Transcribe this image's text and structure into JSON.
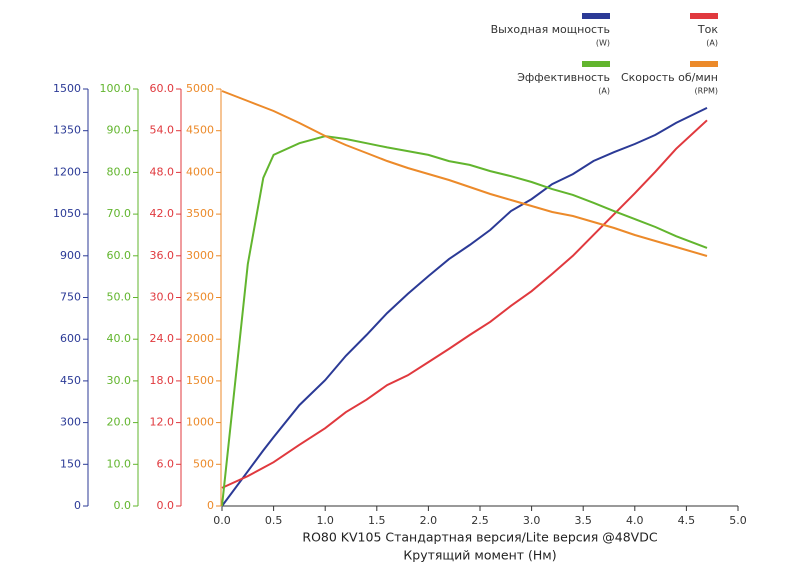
{
  "chart_data": {
    "type": "line",
    "title": "RO80 KV105 Стандартная версия/Lite версия  @48VDC",
    "xlabel": "Крутящий момент (Нм)",
    "x": [
      0,
      0.25,
      0.4,
      0.5,
      0.75,
      1.0,
      1.2,
      1.4,
      1.6,
      1.8,
      2.0,
      2.2,
      2.4,
      2.6,
      2.8,
      3.0,
      3.2,
      3.4,
      3.6,
      3.8,
      4.0,
      4.2,
      4.4,
      4.7
    ],
    "xlim": [
      0,
      5
    ],
    "xticks": [
      {
        "value": 0,
        "label": "0.0"
      },
      {
        "value": 0.5,
        "label": "0.5"
      },
      {
        "value": 1,
        "label": "1.0"
      },
      {
        "value": 1.5,
        "label": "1.5"
      },
      {
        "value": 2,
        "label": "2.0"
      },
      {
        "value": 2.5,
        "label": "2.5"
      },
      {
        "value": 3,
        "label": "3.0"
      },
      {
        "value": 3.5,
        "label": "3.5"
      },
      {
        "value": 4,
        "label": "4.0"
      },
      {
        "value": 4.5,
        "label": "4.5"
      },
      {
        "value": 5,
        "label": "5.0"
      }
    ],
    "series": [
      {
        "name": "Выходная мощность",
        "unit": "(W)",
        "color": "#2b3a96",
        "values": [
          0,
          125,
          200,
          248,
          363,
          453,
          540,
          615,
          694,
          763,
          827,
          888,
          939,
          993,
          1061,
          1104,
          1158,
          1194,
          1241,
          1273,
          1302,
          1335,
          1378,
          1432
        ],
        "ylim": [
          0,
          1500
        ],
        "yticks": [
          0,
          150,
          300,
          450,
          600,
          750,
          900,
          1050,
          1200,
          1350,
          1500
        ]
      },
      {
        "name": "Ток",
        "unit": "(A)",
        "color": "#e0393e",
        "values": [
          2.6,
          4.3,
          5.5,
          6.3,
          8.8,
          11.2,
          13.5,
          15.3,
          17.4,
          18.8,
          20.7,
          22.6,
          24.6,
          26.5,
          28.8,
          30.9,
          33.4,
          36.0,
          39.0,
          42.0,
          45.0,
          48.1,
          51.4,
          55.5
        ],
        "ylim": [
          0,
          60
        ],
        "yticks": [
          {
            "value": 0,
            "label": "0.0"
          },
          {
            "value": 6,
            "label": "6.0"
          },
          {
            "value": 12,
            "label": "12.0"
          },
          {
            "value": 18,
            "label": "18.0"
          },
          {
            "value": 24,
            "label": "24.0"
          },
          {
            "value": 30,
            "label": "30.0"
          },
          {
            "value": 36,
            "label": "36.0"
          },
          {
            "value": 42,
            "label": "42.0"
          },
          {
            "value": 48,
            "label": "48.0"
          },
          {
            "value": 54,
            "label": "54.0"
          },
          {
            "value": 60,
            "label": "60.0"
          }
        ]
      },
      {
        "name": "Эффективность",
        "unit": "(A)",
        "color": "#62b52e",
        "values": [
          0,
          58,
          78.7,
          84.2,
          87,
          88.7,
          88,
          87,
          86,
          85.1,
          84.2,
          82.7,
          81.8,
          80.3,
          79.1,
          77.7,
          76,
          74.6,
          72.7,
          70.7,
          68.8,
          66.9,
          64.7,
          61.9
        ],
        "ylim": [
          0,
          100
        ],
        "yticks": [
          {
            "value": 0,
            "label": "0.0"
          },
          {
            "value": 10,
            "label": "10.0"
          },
          {
            "value": 20,
            "label": "20.0"
          },
          {
            "value": 30,
            "label": "30.0"
          },
          {
            "value": 40,
            "label": "40.0"
          },
          {
            "value": 50,
            "label": "50.0"
          },
          {
            "value": 60,
            "label": "60.0"
          },
          {
            "value": 70,
            "label": "70.0"
          },
          {
            "value": 80,
            "label": "80.0"
          },
          {
            "value": 90,
            "label": "90.0"
          },
          {
            "value": 100,
            "label": "100.0"
          }
        ]
      },
      {
        "name": "Скорость об/мин",
        "unit": "(RPM)",
        "color": "#ec8a2a",
        "values": [
          4976,
          4856,
          4784,
          4736,
          4592,
          4436,
          4329,
          4233,
          4137,
          4053,
          3981,
          3909,
          3825,
          3741,
          3669,
          3597,
          3525,
          3477,
          3405,
          3333,
          3249,
          3177,
          3106,
          2998
        ],
        "ylim": [
          0,
          5000
        ],
        "yticks": [
          0,
          500,
          1000,
          1500,
          2000,
          2500,
          3000,
          3500,
          4000,
          4500,
          5000
        ]
      }
    ]
  }
}
